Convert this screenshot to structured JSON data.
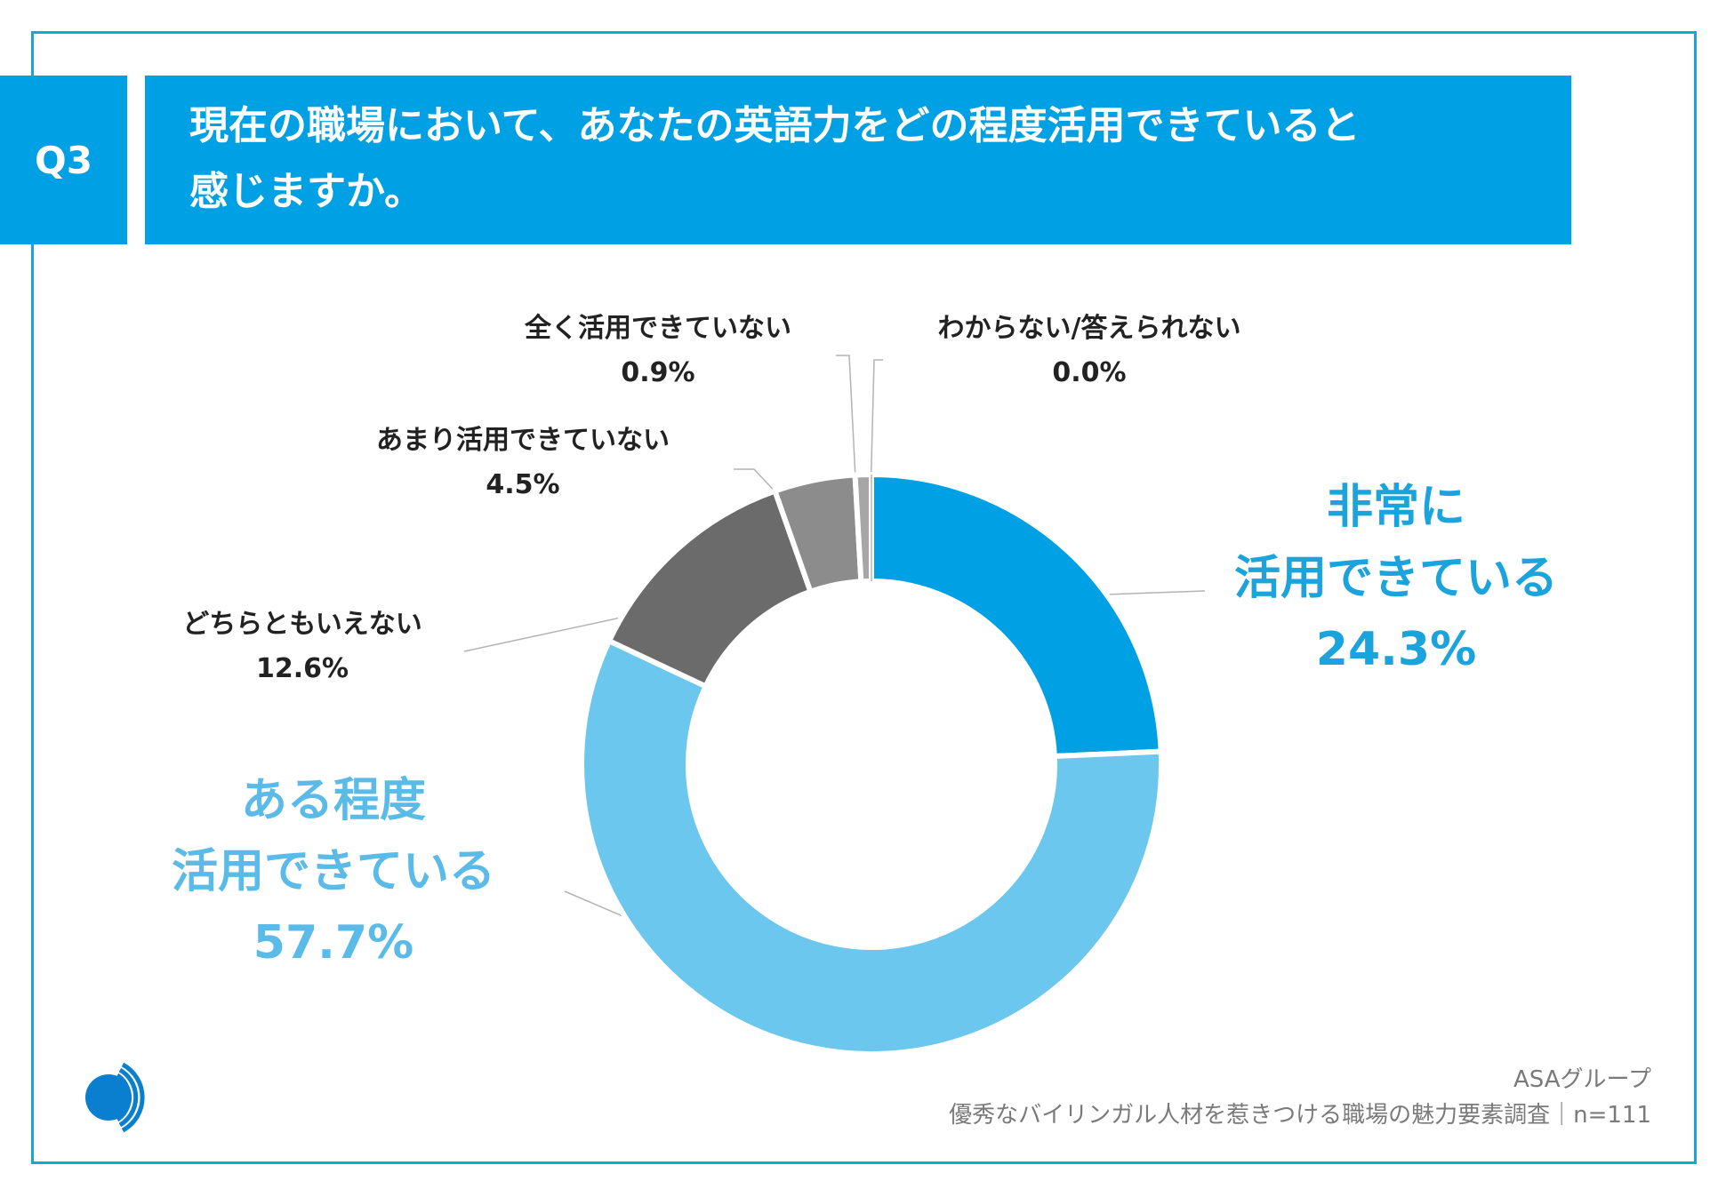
{
  "question": {
    "number": "Q3",
    "title_line1": "現在の職場において、あなたの英語力をどの程度活用できていると",
    "title_line2": "感じますか。"
  },
  "chart_data": {
    "type": "pie",
    "variant": "donut",
    "start": "12 o'clock",
    "direction": "clockwise",
    "slices": [
      {
        "label": "非常に活用できている",
        "lines": [
          "非常に",
          "活用できている"
        ],
        "value_text": "24.3%",
        "value": 24.3,
        "color": "#00a0e4"
      },
      {
        "label": "ある程度活用できている",
        "lines": [
          "ある程度",
          "活用できている"
        ],
        "value_text": "57.7%",
        "value": 57.7,
        "color": "#6bc7ee"
      },
      {
        "label": "どちらともいえない",
        "lines": [
          "どちらともいえない"
        ],
        "value_text": "12.6%",
        "value": 12.6,
        "color": "#6b6b6b"
      },
      {
        "label": "あまり活用できていない",
        "lines": [
          "あまり活用できていない"
        ],
        "value_text": "4.5%",
        "value": 4.5,
        "color": "#8c8c8c"
      },
      {
        "label": "全く活用できていない",
        "lines": [
          "全く活用できていない"
        ],
        "value_text": "0.9%",
        "value": 0.9,
        "color": "#a6a6a6"
      },
      {
        "label": "わからない/答えられない",
        "lines": [
          "わからない/答えられない"
        ],
        "value_text": "0.0%",
        "value": 0.0,
        "color": "#c8c8c8"
      }
    ]
  },
  "footer": {
    "company": "ASAグループ",
    "survey": "優秀なバイリンガル人材を惹きつける職場の魅力要素調査｜n=111"
  },
  "logo": {
    "name": "asa-logo-icon",
    "color": "#0a7fd0"
  }
}
